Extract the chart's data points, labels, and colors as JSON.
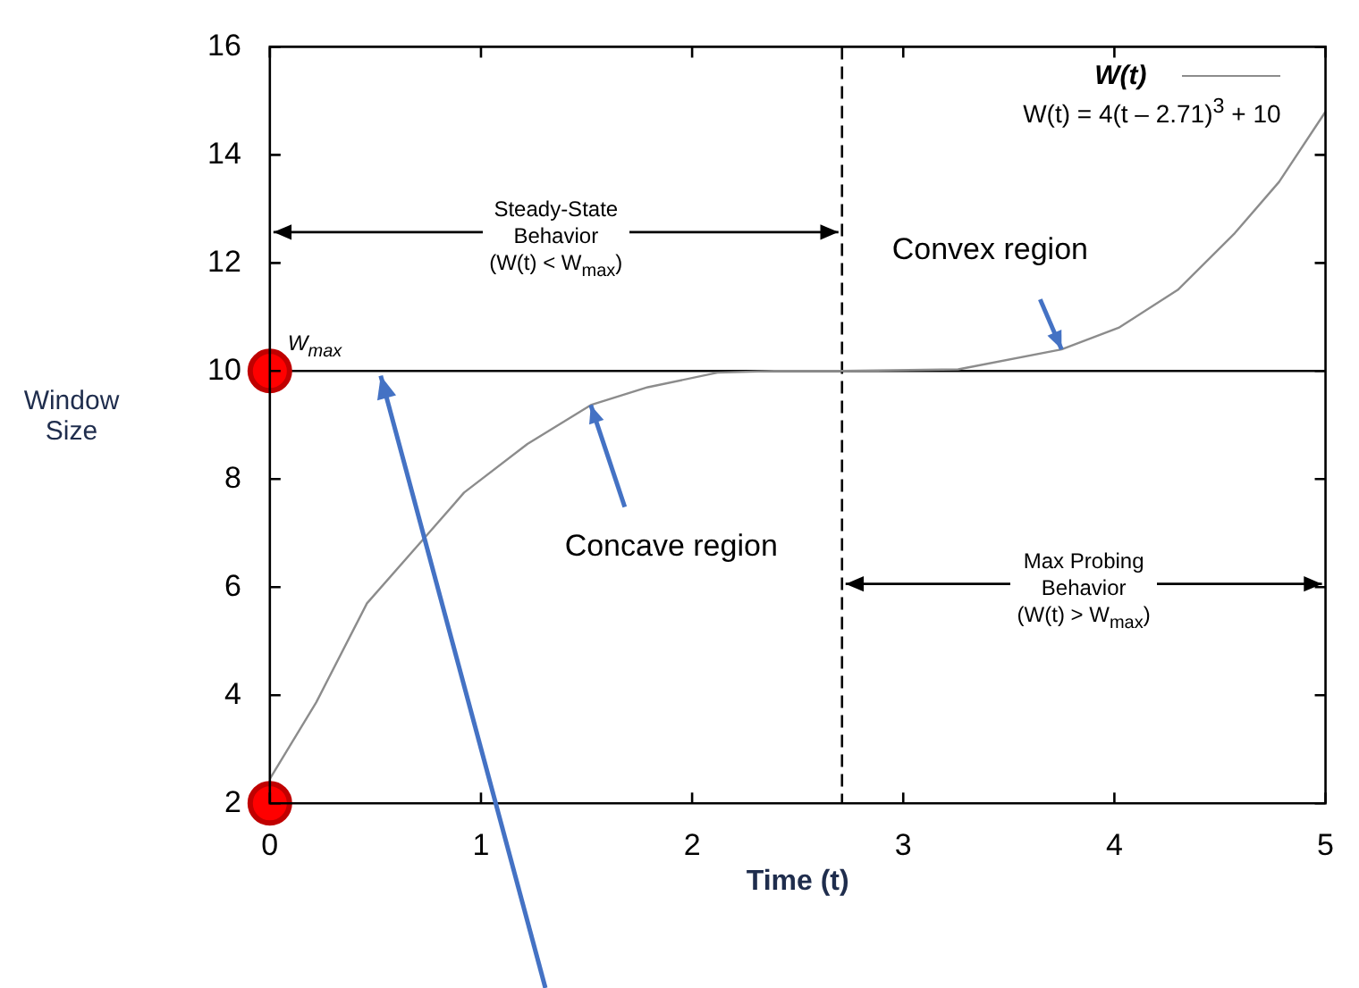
{
  "chart_data": {
    "type": "line",
    "xlabel": "Time (t)",
    "ylabel": "Window\nSize",
    "legend": "top right",
    "xlim": [
      0,
      5
    ],
    "xticks": [
      0,
      1,
      2,
      3,
      4,
      5
    ],
    "ylim": [
      2,
      16
    ],
    "yticks": [
      2,
      4,
      6,
      8,
      10,
      12,
      14,
      16
    ],
    "series": [
      {
        "name": "W(t)",
        "color": "#8c8c8c",
        "marker": "none",
        "x": [
          0,
          0.22,
          0.46,
          0.73,
          0.92,
          1.22,
          1.52,
          1.79,
          2.12,
          2.39,
          2.71,
          3.26,
          3.75,
          4.02,
          4.3,
          4.57,
          4.78,
          5.0
        ],
        "values": [
          2.45,
          3.87,
          5.7,
          6.9,
          7.75,
          8.65,
          9.37,
          9.7,
          9.97,
          10.0,
          10.0,
          10.03,
          10.4,
          10.8,
          11.5,
          12.55,
          13.5,
          14.8
        ]
      },
      {
        "type": "scatter",
        "color": "#ff0000",
        "marker": "circle",
        "x": [
          0,
          0
        ],
        "values": [
          10,
          2
        ]
      }
    ],
    "ref_lines": [
      {
        "axis": "y",
        "value": 10,
        "label": "W$_{max}$",
        "color": "#000000"
      },
      {
        "axis": "x",
        "value": 2.71,
        "color": "#000000",
        "line_style": "dashed"
      }
    ],
    "annotations": [
      "W(t) = 4(t – 2.71)$^{3}$ + 10",
      "Steady-State\nBehavior\n(W(t) < W$_{max}$)",
      "Max Probing\nBehavior\n(W(t) > W$_{max}$)",
      {
        "text": "Convex region",
        "x": 3.75,
        "y": 10.4
      },
      {
        "text": "Concave region",
        "x": 1.52,
        "y": 9.37
      }
    ]
  }
}
